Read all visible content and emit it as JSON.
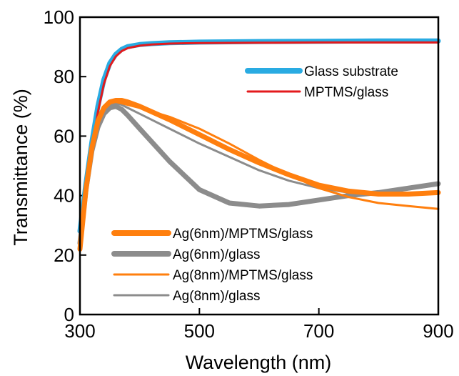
{
  "chart_data": {
    "type": "line",
    "xlabel": "Wavelength (nm)",
    "ylabel": "Transmittance (%)",
    "xlim": [
      300,
      900
    ],
    "ylim": [
      0,
      100
    ],
    "xticks": [
      300,
      500,
      700,
      900
    ],
    "yticks": [
      0,
      20,
      40,
      60,
      80,
      100
    ],
    "grid": false,
    "legend_groups": [
      {
        "placement": "top-right",
        "entries": [
          "Glass substrate",
          "MPTMS/glass"
        ]
      },
      {
        "placement": "bottom-left",
        "entries": [
          "Ag(6nm)/MPTMS/glass",
          "Ag(6nm)/glass",
          "Ag(8nm)/MPTMS/glass",
          "Ag(8nm)/glass"
        ]
      }
    ],
    "series": [
      {
        "name": "Glass substrate",
        "color": "#29abe2",
        "style": "thick",
        "x": [
          300,
          310,
          320,
          330,
          340,
          350,
          360,
          370,
          380,
          400,
          420,
          450,
          500,
          600,
          700,
          800,
          900
        ],
        "y": [
          28,
          44,
          58,
          70,
          79,
          84.5,
          87.5,
          89.2,
          90.1,
          90.8,
          91.1,
          91.4,
          91.6,
          91.8,
          91.9,
          92,
          92
        ]
      },
      {
        "name": "MPTMS/glass",
        "color": "#e31a1c",
        "style": "thin",
        "x": [
          300,
          310,
          320,
          330,
          340,
          350,
          360,
          370,
          380,
          400,
          420,
          450,
          500,
          600,
          700,
          800,
          900
        ],
        "y": [
          26,
          42,
          56,
          68,
          77.5,
          83.5,
          86.8,
          88.6,
          89.6,
          90.4,
          90.8,
          91.1,
          91.3,
          91.4,
          91.5,
          91.5,
          91.5
        ]
      },
      {
        "name": "Ag(6nm)/MPTMS/glass",
        "color": "#ff7f0e",
        "style": "thick",
        "x": [
          300,
          310,
          320,
          330,
          340,
          350,
          360,
          370,
          380,
          400,
          450,
          500,
          550,
          600,
          650,
          700,
          750,
          800,
          850,
          900
        ],
        "y": [
          22,
          42,
          56,
          65,
          69.5,
          71.5,
          72,
          72,
          71.5,
          70,
          65.5,
          60.5,
          55.5,
          51,
          47,
          43.5,
          41.5,
          40.5,
          40.5,
          41
        ]
      },
      {
        "name": "Ag(6nm)/glass",
        "color": "#8c8c8c",
        "style": "thick",
        "x": [
          300,
          310,
          320,
          330,
          340,
          350,
          360,
          370,
          380,
          400,
          450,
          500,
          550,
          600,
          650,
          700,
          750,
          800,
          850,
          900
        ],
        "y": [
          24,
          42,
          55,
          63,
          67.5,
          69.5,
          70,
          69,
          67,
          62.5,
          51.5,
          42,
          37.5,
          36.5,
          37,
          38.5,
          40,
          41,
          42.5,
          44
        ]
      },
      {
        "name": "Ag(8nm)/MPTMS/glass",
        "color": "#ff7f0e",
        "style": "thin",
        "x": [
          300,
          310,
          320,
          330,
          340,
          350,
          360,
          370,
          380,
          400,
          450,
          500,
          550,
          600,
          650,
          700,
          750,
          800,
          850,
          900
        ],
        "y": [
          22,
          42,
          56,
          65,
          69.5,
          71.5,
          71.5,
          71,
          70.5,
          69.5,
          66.5,
          62.5,
          57.5,
          52,
          47,
          42.5,
          39.5,
          37.5,
          36.5,
          35.5
        ]
      },
      {
        "name": "Ag(8nm)/glass",
        "color": "#8c8c8c",
        "style": "thin",
        "x": [
          300,
          310,
          320,
          330,
          340,
          350,
          360,
          370,
          380,
          400,
          450,
          500,
          550,
          600,
          650,
          700,
          750,
          800,
          850,
          900
        ],
        "y": [
          24,
          42,
          56,
          64.5,
          68.5,
          70.5,
          71,
          70.5,
          69.5,
          67.5,
          62.5,
          57.5,
          53,
          48.5,
          45,
          42.5,
          41,
          40.5,
          40.5,
          41
        ]
      }
    ]
  }
}
